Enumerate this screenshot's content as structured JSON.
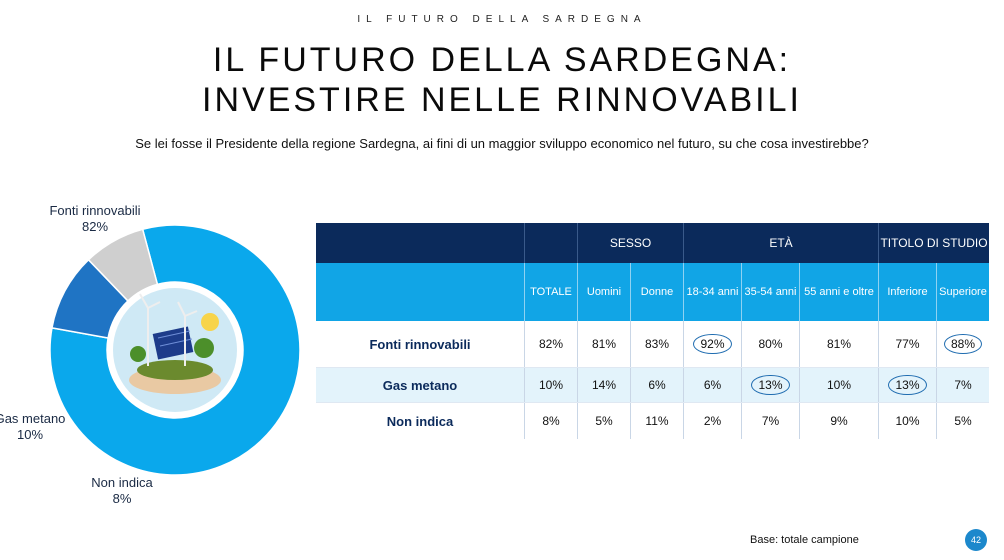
{
  "header": {
    "kicker": "IL FUTURO DELLA SARDEGNA",
    "title_line1": "IL FUTURO DELLA SARDEGNA:",
    "title_line2": "INVESTIRE NELLE RINNOVABILI",
    "question": "Se lei fosse il Presidente della regione Sardegna, ai fini di un maggior sviluppo economico nel futuro, su che cosa investirebbe?"
  },
  "chart_data": {
    "type": "pie",
    "categories": [
      "Fonti rinnovabili",
      "Gas metano",
      "Non indica"
    ],
    "values": [
      82,
      10,
      8
    ],
    "labels": [
      "82%",
      "10%",
      "8%"
    ],
    "colors": [
      "#0aa8ec",
      "#1f74c4",
      "#cfcfcf"
    ]
  },
  "table": {
    "groups": [
      "SESSO",
      "ETÀ",
      "TITOLO DI STUDIO"
    ],
    "columns": [
      "TOTALE",
      "Uomini",
      "Donne",
      "18-34 anni",
      "35-54 anni",
      "55 anni e oltre",
      "Inferiore",
      "Superiore"
    ],
    "rows": [
      {
        "label": "Fonti rinnovabili",
        "cells": [
          "82%",
          "81%",
          "83%",
          "92%",
          "80%",
          "81%",
          "77%",
          "88%"
        ]
      },
      {
        "label": "Gas metano",
        "cells": [
          "10%",
          "14%",
          "6%",
          "6%",
          "13%",
          "10%",
          "13%",
          "7%"
        ]
      },
      {
        "label": "Non indica",
        "cells": [
          "8%",
          "5%",
          "11%",
          "2%",
          "7%",
          "9%",
          "10%",
          "5%"
        ]
      }
    ]
  },
  "footer": {
    "base": "Base: totale campione",
    "page": "42"
  },
  "colors": {
    "header_dark": "#0b2a5b",
    "header_light": "#11a5e6",
    "highlight_row": "#e3f3fb"
  }
}
